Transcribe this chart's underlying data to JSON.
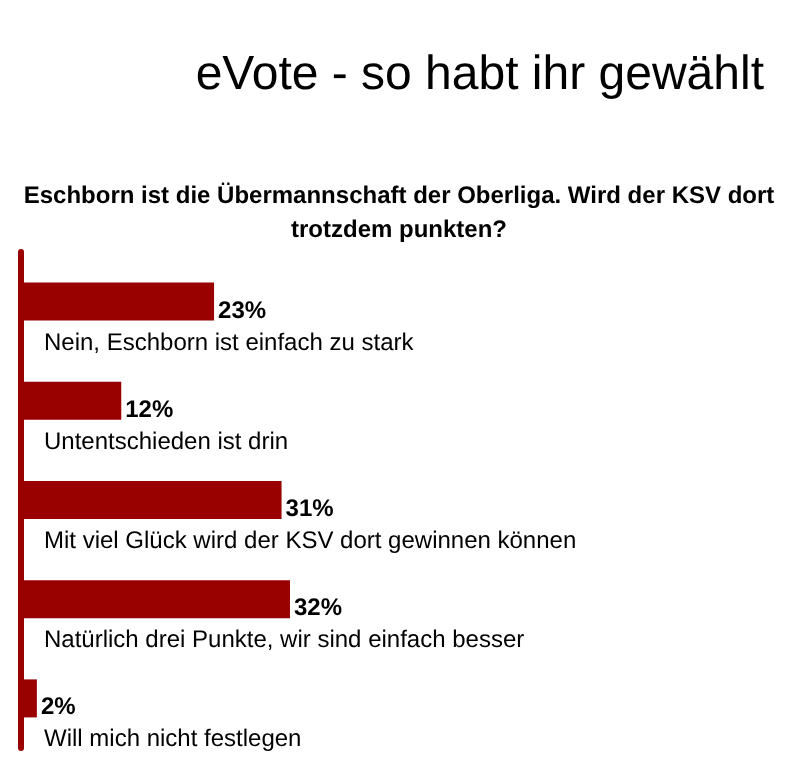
{
  "chart_data": {
    "type": "bar",
    "orientation": "horizontal",
    "title": "eVote - so habt ihr gewählt",
    "subtitle": "Eschborn ist die Übermannschaft der Oberliga. Wird der KSV dort\ntrotzdem punkten?",
    "categories": [
      "Nein, Eschborn ist einfach zu stark",
      "Untentschieden ist drin",
      "Mit viel Glück wird der KSV dort gewinnen können",
      "Natürlich drei Punkte, wir sind einfach besser",
      "Will mich nicht festlegen"
    ],
    "values": [
      23,
      12,
      31,
      32,
      2
    ],
    "value_labels": [
      "23%",
      "12%",
      "31%",
      "32%",
      "2%"
    ],
    "color": "#990000"
  }
}
